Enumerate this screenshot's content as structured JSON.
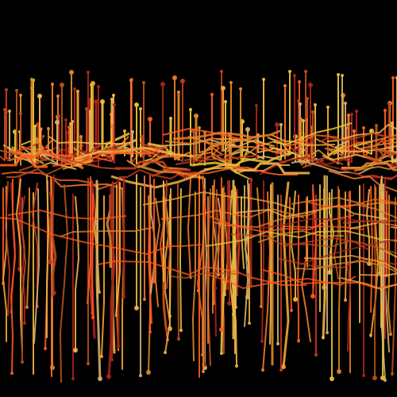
{
  "artwork": {
    "background": "#000000",
    "palette": [
      "#f2a634",
      "#d98a28",
      "#e7c23a",
      "#c43a1f",
      "#a8241c",
      "#ff5a1f",
      "#f07a2a",
      "#b9501e",
      "#f2b54a",
      "#d2b06a"
    ],
    "icon_names": []
  }
}
